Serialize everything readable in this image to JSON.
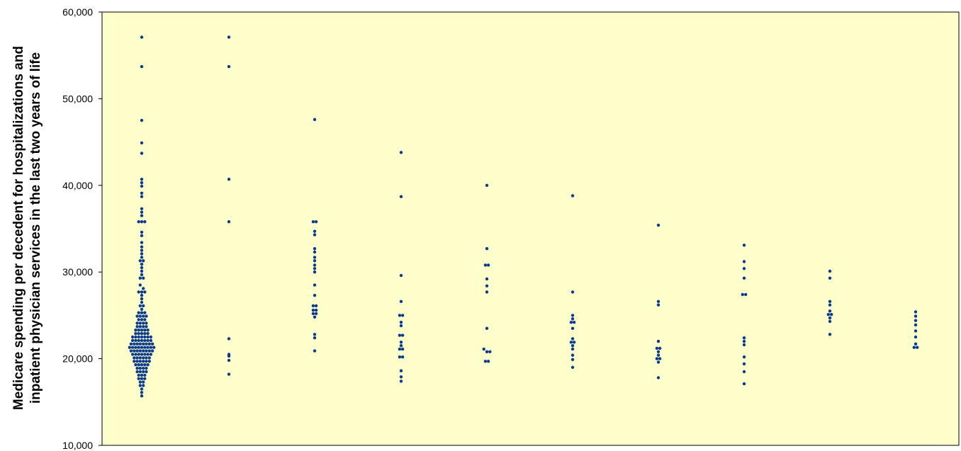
{
  "chart_data": {
    "type": "scatter",
    "title": "",
    "xlabel": "",
    "ylabel_lines": [
      "Medicare spending per decedent for hospitalizations and",
      "inpatient physician services in the last two years of life"
    ],
    "ylim": [
      10000,
      60000
    ],
    "yticks": [
      10000,
      20000,
      30000,
      40000,
      50000,
      60000
    ],
    "ytick_labels": [
      "10,000",
      "20,000",
      "30,000",
      "40,000",
      "50,000",
      "60,000"
    ],
    "grid": false,
    "plot_background": "#FFFFCC",
    "marker_color": "#0B3B8C",
    "groups": [
      {
        "values": [
          57100,
          53700,
          47500,
          44900,
          43700,
          40700,
          40300,
          39900,
          39100,
          38700,
          37300,
          36900,
          36500,
          35800,
          35800,
          35800,
          34600,
          34200,
          33400,
          32900,
          32500,
          32100,
          31700,
          31300,
          31300,
          30900,
          30500,
          30100,
          29700,
          29300,
          29300,
          28500,
          28100,
          27700,
          27700,
          27700,
          27300,
          26900,
          26500,
          26100,
          26100,
          25700,
          25300,
          25300,
          25300,
          24900,
          24900,
          24900,
          24900,
          24500,
          24500,
          24500,
          24100,
          24100,
          24100,
          24100,
          23700,
          23700,
          23700,
          23700,
          23300,
          23300,
          23300,
          23300,
          23300,
          22900,
          22900,
          22900,
          22900,
          22900,
          22500,
          22500,
          22500,
          22500,
          22500,
          22500,
          22500,
          22100,
          22100,
          22100,
          22100,
          22100,
          22100,
          22100,
          21700,
          21700,
          21700,
          21700,
          21700,
          21700,
          21700,
          21700,
          21300,
          21300,
          21300,
          21300,
          21300,
          21300,
          21300,
          21300,
          21300,
          20900,
          20900,
          20900,
          20900,
          20900,
          20900,
          20900,
          20900,
          20500,
          20500,
          20500,
          20500,
          20500,
          20500,
          20500,
          20100,
          20100,
          20100,
          20100,
          20100,
          20100,
          19700,
          19700,
          19700,
          19700,
          19700,
          19700,
          19300,
          19300,
          19300,
          19300,
          19300,
          18900,
          18900,
          18900,
          18900,
          18500,
          18500,
          18500,
          18500,
          18100,
          18100,
          18100,
          17700,
          17700,
          17700,
          17300,
          17300,
          16900,
          16900,
          16500,
          16100,
          15700
        ]
      },
      {
        "values": [
          57100,
          53700,
          40700,
          35800,
          22300,
          20500,
          20300,
          19800,
          18200
        ]
      },
      {
        "values": [
          47600,
          35800,
          35800,
          34700,
          34300,
          32700,
          32300,
          31700,
          31300,
          30800,
          30400,
          30000,
          28500,
          27300,
          26100,
          26100,
          25600,
          25600,
          25200,
          25200,
          24800,
          22800,
          22400,
          20900
        ]
      },
      {
        "values": [
          43800,
          38700,
          29600,
          26600,
          25000,
          25000,
          24200,
          23800,
          22700,
          22700,
          21900,
          21500,
          21100,
          21100,
          20200,
          20200,
          18600,
          17900,
          17400
        ]
      },
      {
        "values": [
          40000,
          32700,
          30800,
          30800,
          29200,
          28400,
          27700,
          23500,
          21100,
          20800,
          20800,
          19700,
          19700
        ]
      },
      {
        "values": [
          38800,
          27700,
          25000,
          24600,
          24200,
          24200,
          23500,
          22300,
          21900,
          21900,
          21500,
          21100,
          20400,
          19900,
          19000
        ]
      },
      {
        "values": [
          35400,
          26600,
          26200,
          22000,
          21200,
          21200,
          20800,
          20400,
          20000,
          20000,
          19600,
          17800
        ]
      },
      {
        "values": [
          33100,
          31200,
          30400,
          29300,
          27400,
          27400,
          22400,
          22000,
          21600,
          20200,
          19400,
          18500,
          17100
        ]
      },
      {
        "values": [
          30100,
          29300,
          26600,
          26200,
          25500,
          25100,
          25100,
          24700,
          24300,
          22800
        ]
      },
      {
        "values": [
          25400,
          24900,
          24400,
          23900,
          23200,
          22500,
          21700,
          21300,
          21300
        ]
      }
    ]
  }
}
